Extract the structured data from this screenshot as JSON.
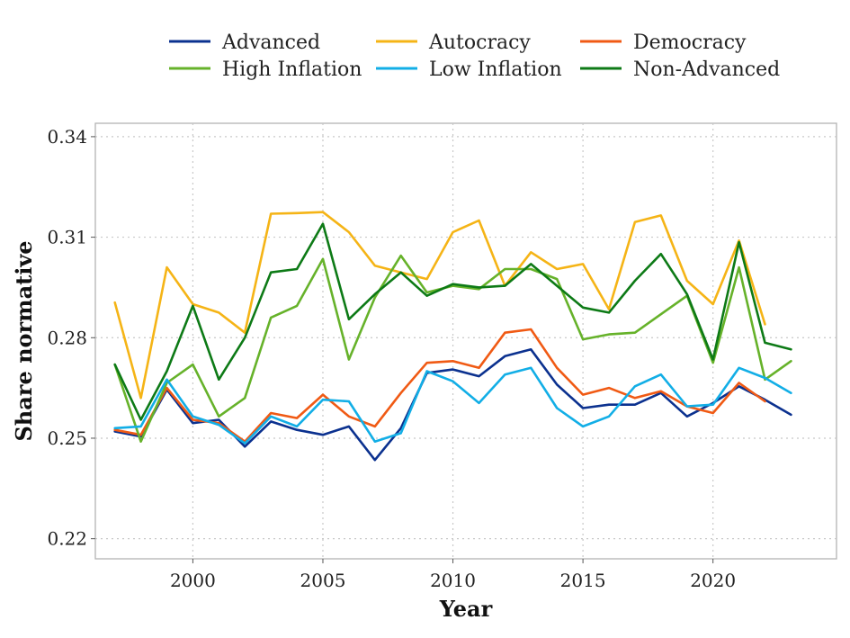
{
  "chart_data": {
    "type": "line",
    "title": "",
    "xlabel": "Year",
    "ylabel": "Share normative",
    "xlim": [
      1996.25,
      2024.75
    ],
    "ylim": [
      0.214,
      0.344
    ],
    "x_ticks": [
      2000,
      2005,
      2010,
      2015,
      2020
    ],
    "y_ticks": [
      0.22,
      0.25,
      0.28,
      0.31,
      0.34
    ],
    "y_tick_labels": [
      "0.22",
      "0.25",
      "0.28",
      "0.31",
      "0.34"
    ],
    "grid": true,
    "legend_position": "top",
    "x": [
      1997,
      1998,
      1999,
      2000,
      2001,
      2002,
      2003,
      2004,
      2005,
      2006,
      2007,
      2008,
      2009,
      2010,
      2011,
      2012,
      2013,
      2014,
      2015,
      2016,
      2017,
      2018,
      2019,
      2020,
      2021,
      2022,
      2023
    ],
    "series": [
      {
        "name": "Advanced",
        "color": "#0b318f",
        "values": [
          0.252,
          0.2505,
          0.2645,
          0.2545,
          0.2555,
          0.2475,
          0.255,
          0.2525,
          0.251,
          0.2535,
          0.2435,
          0.253,
          0.2695,
          0.2705,
          0.2685,
          0.2745,
          0.2765,
          0.266,
          0.259,
          0.26,
          0.26,
          0.2635,
          0.2565,
          0.2605,
          0.2655,
          0.2615,
          0.257
        ]
      },
      {
        "name": "Autocracy",
        "color": "#f5b416",
        "values": [
          0.2905,
          0.262,
          0.301,
          0.29,
          0.2875,
          0.2815,
          0.317,
          0.3172,
          0.3175,
          0.3115,
          0.3015,
          0.2995,
          0.2975,
          0.3115,
          0.315,
          0.2955,
          0.3055,
          0.3005,
          0.302,
          0.2885,
          0.3145,
          0.3165,
          0.297,
          0.29,
          0.309,
          0.284,
          null
        ]
      },
      {
        "name": "Democracy",
        "color": "#f05a14",
        "values": [
          0.2525,
          0.251,
          0.265,
          0.2555,
          0.2545,
          0.249,
          0.2575,
          0.256,
          0.263,
          0.2565,
          0.2535,
          0.2635,
          0.2725,
          0.273,
          0.271,
          0.2815,
          0.2825,
          0.271,
          0.263,
          0.265,
          0.262,
          0.264,
          0.2595,
          0.2575,
          0.2665,
          0.261,
          null
        ]
      },
      {
        "name": "High Inflation",
        "color": "#66b22a",
        "values": [
          0.272,
          0.249,
          0.2665,
          0.272,
          0.2565,
          0.262,
          0.286,
          0.2895,
          0.3035,
          0.2735,
          0.292,
          0.3045,
          0.2935,
          0.2955,
          0.2945,
          0.3005,
          0.3005,
          0.2975,
          0.2795,
          0.281,
          0.2815,
          0.287,
          0.2925,
          0.2725,
          0.301,
          0.2675,
          0.273
        ]
      },
      {
        "name": "Low Inflation",
        "color": "#12aee6",
        "values": [
          0.253,
          0.2535,
          0.2675,
          0.2565,
          0.254,
          0.2485,
          0.2565,
          0.2535,
          0.2615,
          0.261,
          0.249,
          0.2515,
          0.27,
          0.267,
          0.2605,
          0.269,
          0.271,
          0.259,
          0.2535,
          0.2565,
          0.2655,
          0.269,
          0.2595,
          0.26,
          0.271,
          0.268,
          0.2635
        ]
      },
      {
        "name": "Non-Advanced",
        "color": "#0d7a16",
        "values": [
          0.272,
          0.2555,
          0.27,
          0.2895,
          0.2675,
          0.28,
          0.2995,
          0.3005,
          0.314,
          0.2855,
          0.293,
          0.2995,
          0.2925,
          0.296,
          0.295,
          0.2955,
          0.302,
          0.2955,
          0.289,
          0.2875,
          0.297,
          0.305,
          0.293,
          0.2735,
          0.3085,
          0.2785,
          0.2765
        ]
      }
    ]
  }
}
